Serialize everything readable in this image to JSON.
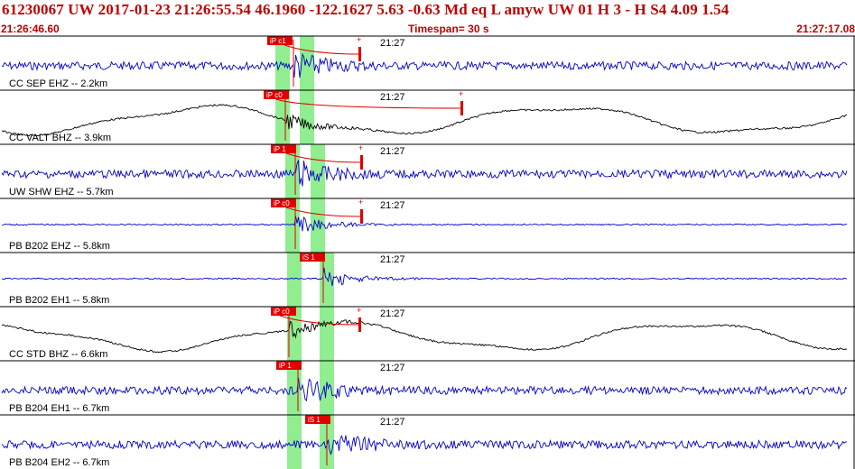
{
  "header": {
    "event_line": "61230067 UW 2017-01-23 21:26:55.54   46.1960 -122.1627   5.63 -0.63 Md   eq   L amyw      UW 01   H    3   -   H S4     4.09   1.54",
    "start_time": "21:26:46.60",
    "timespan": "Timespan=  30 s",
    "end_time": "21:27:17.08"
  },
  "colors": {
    "header_text": "#c00000",
    "trace_blue": "#0000cc",
    "trace_black": "#000000",
    "pick_window": "#90ee90",
    "pick_flag": "#e00000"
  },
  "traces": [
    {
      "label": "CC SEP EHZ -- 2.2km",
      "time_label": "21:27",
      "pick": "iP c1",
      "color": "blue",
      "style": "noise"
    },
    {
      "label": "CC VALT BHZ -- 3.9km",
      "time_label": "21:27",
      "pick": "iP c0",
      "color": "black",
      "style": "wave"
    },
    {
      "label": "UW SHW EHZ -- 5.7km",
      "time_label": "21:27",
      "pick": "iP 1",
      "color": "blue",
      "style": "noise"
    },
    {
      "label": "PB B202 EHZ -- 5.8km",
      "time_label": "21:27",
      "pick": "iP c0",
      "color": "blue",
      "style": "quiet"
    },
    {
      "label": "PB B202 EH1 -- 5.8km",
      "time_label": "21:27",
      "pick": "iS 1",
      "color": "blue",
      "style": "quiet"
    },
    {
      "label": "CC STD BHZ -- 6.6km",
      "time_label": "21:27",
      "pick": "iP c0",
      "color": "black",
      "style": "wave"
    },
    {
      "label": "PB B204 EH1 -- 6.7km",
      "time_label": "21:27",
      "pick": "iP 1",
      "color": "blue",
      "style": "noise"
    },
    {
      "label": "PB B204 EH2 -- 6.7km",
      "time_label": "21:27",
      "pick": "iS 1",
      "color": "blue",
      "style": "noise"
    }
  ]
}
